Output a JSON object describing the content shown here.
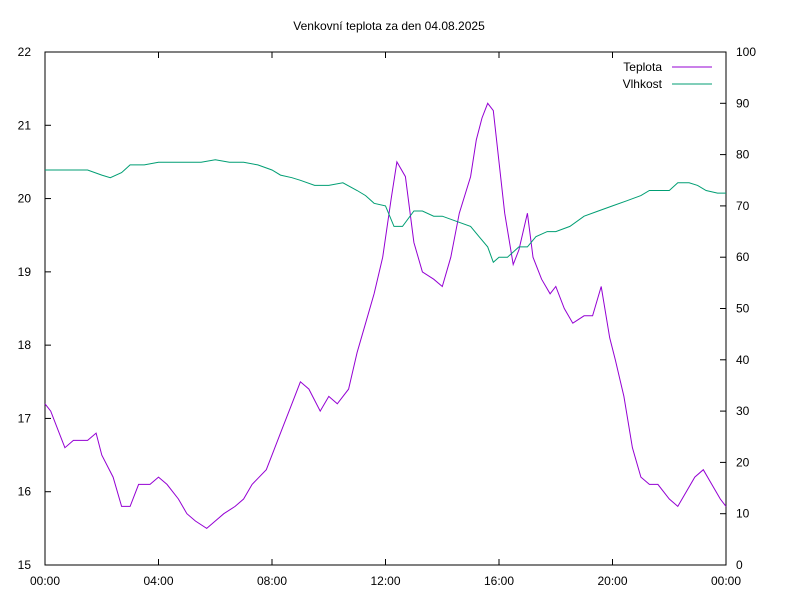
{
  "chart_data": {
    "type": "line",
    "title": "Venkovní teplota za den 04.08.2025",
    "xlabel": "",
    "ylabel": "",
    "y2label": "",
    "x_ticks": [
      "00:00",
      "04:00",
      "08:00",
      "12:00",
      "16:00",
      "20:00",
      "00:00"
    ],
    "xlim_hours": [
      0,
      24
    ],
    "ylim": [
      15,
      22
    ],
    "y_ticks": [
      "15",
      "16",
      "17",
      "18",
      "19",
      "20",
      "21",
      "22"
    ],
    "y2lim": [
      0,
      100
    ],
    "y2_ticks": [
      "0",
      "10",
      "20",
      "30",
      "40",
      "50",
      "60",
      "70",
      "80",
      "90",
      "100"
    ],
    "legend_position": "top-right",
    "grid": false,
    "series": [
      {
        "name": "Teplota",
        "axis": "left",
        "color": "#9400d3",
        "x_hours": [
          0,
          0.2,
          0.5,
          0.7,
          1,
          1.5,
          1.8,
          2,
          2.4,
          2.7,
          3,
          3.3,
          3.7,
          4,
          4.3,
          4.7,
          5,
          5.3,
          5.7,
          6,
          6.3,
          6.7,
          7,
          7.3,
          7.8,
          8,
          8.3,
          8.7,
          9,
          9.3,
          9.7,
          10,
          10.3,
          10.7,
          11,
          11.3,
          11.6,
          11.9,
          12.2,
          12.4,
          12.7,
          13,
          13.3,
          13.7,
          14,
          14.3,
          14.6,
          15,
          15.2,
          15.4,
          15.6,
          15.8,
          16,
          16.2,
          16.5,
          16.7,
          17,
          17.2,
          17.5,
          17.8,
          18,
          18.3,
          18.6,
          19,
          19.3,
          19.6,
          19.9,
          20.1,
          20.4,
          20.7,
          21,
          21.3,
          21.6,
          22,
          22.3,
          22.6,
          22.9,
          23.2,
          23.5,
          23.8,
          24
        ],
        "values": [
          17.2,
          17.1,
          16.8,
          16.6,
          16.7,
          16.7,
          16.8,
          16.5,
          16.2,
          15.8,
          15.8,
          16.1,
          16.1,
          16.2,
          16.1,
          15.9,
          15.7,
          15.6,
          15.5,
          15.6,
          15.7,
          15.8,
          15.9,
          16.1,
          16.3,
          16.5,
          16.8,
          17.2,
          17.5,
          17.4,
          17.1,
          17.3,
          17.2,
          17.4,
          17.9,
          18.3,
          18.7,
          19.2,
          20.0,
          20.5,
          20.3,
          19.4,
          19.0,
          18.9,
          18.8,
          19.2,
          19.8,
          20.3,
          20.8,
          21.1,
          21.3,
          21.2,
          20.5,
          19.8,
          19.1,
          19.3,
          19.8,
          19.2,
          18.9,
          18.7,
          18.8,
          18.5,
          18.3,
          18.4,
          18.4,
          18.8,
          18.1,
          17.8,
          17.3,
          16.6,
          16.2,
          16.1,
          16.1,
          15.9,
          15.8,
          16.0,
          16.2,
          16.3,
          16.1,
          15.9,
          15.8
        ]
      },
      {
        "name": "Vlhkost",
        "axis": "right",
        "color": "#009e73",
        "x_hours": [
          0,
          0.5,
          1,
          1.5,
          2,
          2.3,
          2.7,
          3,
          3.5,
          4,
          4.5,
          5,
          5.5,
          6,
          6.5,
          7,
          7.5,
          8,
          8.3,
          8.7,
          9,
          9.5,
          10,
          10.5,
          11,
          11.3,
          11.6,
          12,
          12.3,
          12.6,
          13,
          13.3,
          13.7,
          14,
          14.5,
          15,
          15.3,
          15.6,
          15.8,
          16,
          16.3,
          16.7,
          17,
          17.3,
          17.7,
          18,
          18.5,
          19,
          19.5,
          20,
          20.5,
          21,
          21.3,
          21.7,
          22,
          22.3,
          22.7,
          23,
          23.3,
          23.7,
          24
        ],
        "values": [
          77,
          77,
          77,
          77,
          76,
          75.5,
          76.5,
          78,
          78,
          78.5,
          78.5,
          78.5,
          78.5,
          79,
          78.5,
          78.5,
          78,
          77,
          76,
          75.5,
          75,
          74,
          74,
          74.5,
          73,
          72,
          70.5,
          70,
          66,
          66,
          69,
          69,
          68,
          68,
          67,
          66,
          64,
          62,
          59,
          60,
          60,
          62,
          62,
          64,
          65,
          65,
          66,
          68,
          69,
          70,
          71,
          72,
          73,
          73,
          73,
          74.5,
          74.5,
          74,
          73,
          72.5,
          72.5
        ]
      }
    ]
  }
}
